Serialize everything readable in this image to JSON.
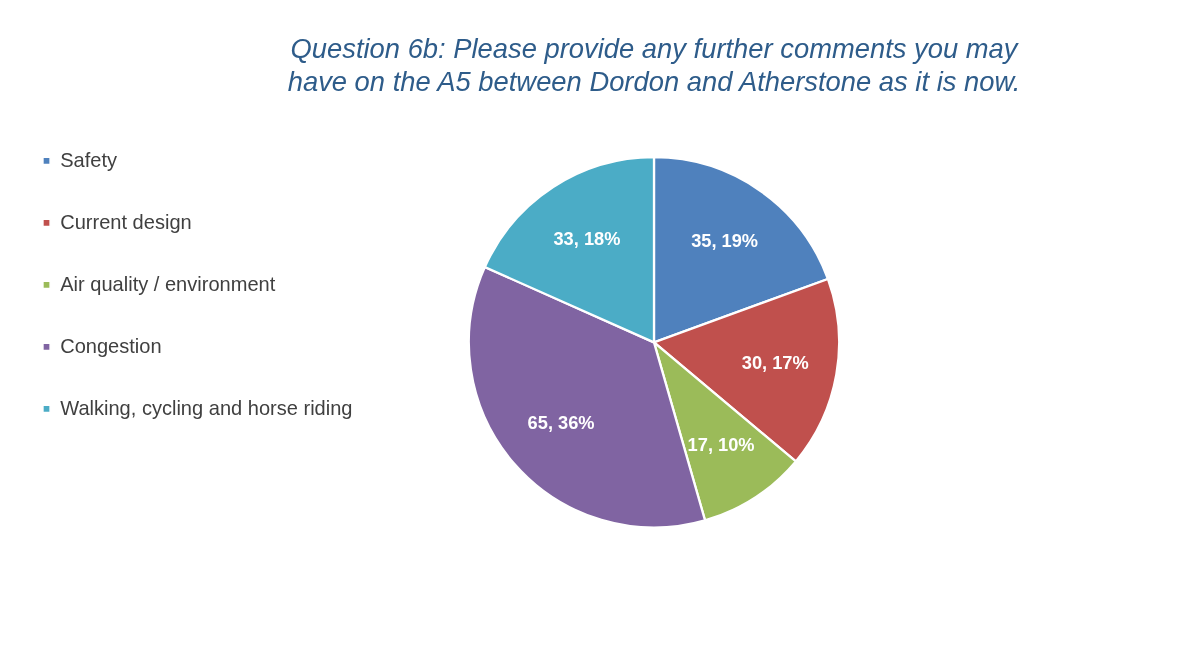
{
  "chart_data": {
    "type": "pie",
    "title": "Question 6b: Please provide any further comments you may have on the A5 between Dordon and Atherstone as it is now.",
    "categories": [
      "Safety",
      "Current design",
      "Air quality  / environment",
      "Congestion",
      "Walking, cycling and horse riding"
    ],
    "values": [
      35,
      30,
      17,
      65,
      33
    ],
    "colors": [
      "#4f81bd",
      "#c0504d",
      "#9bbb59",
      "#8064a2",
      "#4bacc6"
    ],
    "value_labels": [
      "35, 19%",
      "30, 17%",
      "17, 10%",
      "65, 36%",
      "33, 18%"
    ],
    "legend": "left"
  }
}
